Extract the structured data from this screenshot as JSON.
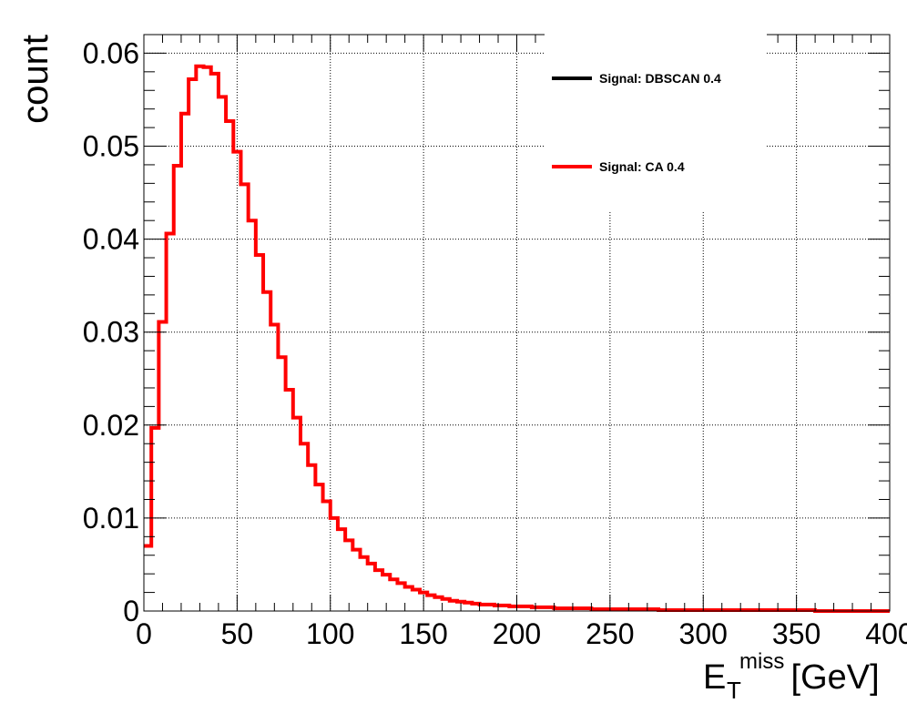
{
  "chart_data": {
    "type": "histogram",
    "ylabel": "count",
    "xlabel": {
      "main": "E",
      "sub": "T",
      "sup": "miss",
      "unit": " [GeV]"
    },
    "xlim": [
      0,
      400
    ],
    "ylim": [
      0,
      0.062
    ],
    "grid": true,
    "legend_position": "top-right",
    "bin_width": 4,
    "xticks": [
      "0",
      "50",
      "100",
      "150",
      "200",
      "250",
      "300",
      "350",
      "400"
    ],
    "xtick_values": [
      0,
      50,
      100,
      150,
      200,
      250,
      300,
      350,
      400
    ],
    "yticks": [
      "0",
      "0.01",
      "0.02",
      "0.03",
      "0.04",
      "0.05",
      "0.06"
    ],
    "ytick_values": [
      0,
      0.01,
      0.02,
      0.03,
      0.04,
      0.05,
      0.06
    ],
    "series": [
      {
        "name": "Signal: DBSCAN 0.4",
        "color": "#000000",
        "values": []
      },
      {
        "name": "Signal: CA 0.4",
        "color": "#ff0000",
        "values": [
          0.007,
          0.0197,
          0.0311,
          0.0406,
          0.0479,
          0.0535,
          0.0572,
          0.0586,
          0.0585,
          0.0578,
          0.0553,
          0.0527,
          0.0494,
          0.0459,
          0.042,
          0.0383,
          0.0343,
          0.0308,
          0.0273,
          0.0238,
          0.0208,
          0.018,
          0.0157,
          0.0136,
          0.0118,
          0.01,
          0.0088,
          0.0076,
          0.0066,
          0.0058,
          0.0051,
          0.0044,
          0.0039,
          0.0034,
          0.003,
          0.0026,
          0.0023,
          0.002,
          0.0017,
          0.0015,
          0.0013,
          0.0011,
          0.001,
          0.0009,
          0.0008,
          0.0007,
          0.0007,
          0.0006,
          0.0006,
          0.0005,
          0.0005,
          0.0005,
          0.0004,
          0.0004,
          0.0004,
          0.0003,
          0.0003,
          0.0003,
          0.0003,
          0.0003,
          0.0002,
          0.0002,
          0.0002,
          0.0002,
          0.0002,
          0.0002,
          0.0002,
          0.0002,
          0.0002,
          0.0001,
          0.0001,
          0.0001,
          0.0001,
          0.0001,
          0.0001,
          0.0001,
          0.0001,
          0.0001,
          0.0001,
          0.0001,
          0.0001,
          0.0001,
          0.0001,
          0.0001,
          0.0001,
          0.0001,
          0.0001,
          0.0001,
          0.0001,
          0.0001,
          0.0,
          0.0,
          0.0,
          0.0,
          0.0,
          0.0,
          0.0,
          0.0,
          0.0,
          0.0
        ]
      }
    ]
  }
}
